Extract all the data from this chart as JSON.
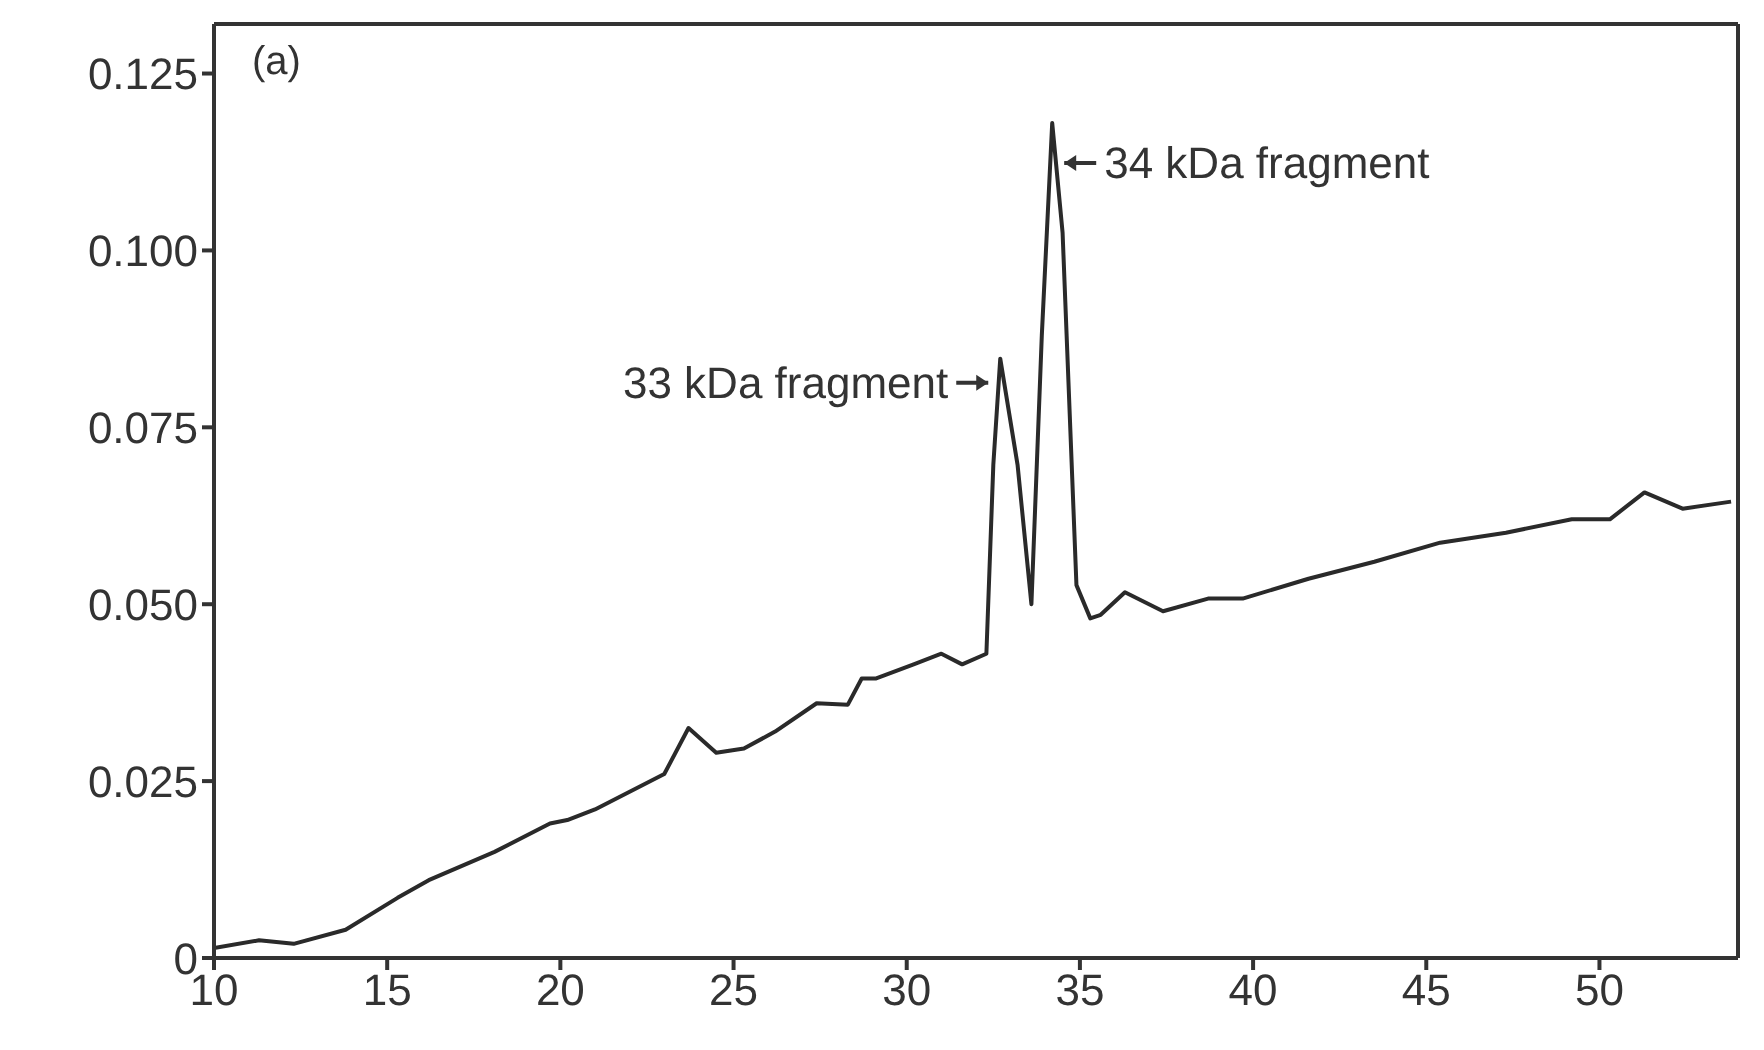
{
  "chart_data": {
    "type": "line",
    "color": "#2a2a2a",
    "x": [
      10,
      11.3,
      12.3,
      13.8,
      15.3,
      16.2,
      18.1,
      19.7,
      20.2,
      21,
      23,
      23.7,
      24.5,
      25.3,
      26.2,
      27.4,
      28.3,
      28.7,
      29.1,
      30.2,
      31,
      31.6,
      32.3,
      32.5,
      32.7,
      33.2,
      33.6,
      33.9,
      34.2,
      34.5,
      34.9,
      35.3,
      35.6,
      36.3,
      37.4,
      38.7,
      39.7,
      41.6,
      43.5,
      45.4,
      47.3,
      49.2,
      50.3,
      51.3,
      52.4,
      53.8
    ],
    "values": [
      0.0014,
      0.0025,
      0.002,
      0.004,
      0.0085,
      0.011,
      0.015,
      0.019,
      0.0195,
      0.021,
      0.026,
      0.0325,
      0.029,
      0.0296,
      0.032,
      0.036,
      0.0358,
      0.0395,
      0.0395,
      0.0415,
      0.043,
      0.0415,
      0.043,
      0.0697,
      0.0847,
      0.0697,
      0.05,
      0.088,
      0.118,
      0.1025,
      0.0527,
      0.048,
      0.0485,
      0.0517,
      0.049,
      0.0508,
      0.0508,
      0.0536,
      0.056,
      0.0587,
      0.0601,
      0.062,
      0.062,
      0.0658,
      0.0635,
      0.0645
    ],
    "xlim": [
      10,
      54
    ],
    "xticks": [
      10,
      15,
      20,
      25,
      30,
      35,
      40,
      45,
      50
    ],
    "ylim": [
      0,
      0.132
    ],
    "yticks": [
      {
        "value": 0,
        "label": "0"
      },
      {
        "value": 0.025,
        "label": "0.025"
      },
      {
        "value": 0.05,
        "label": "0.050"
      },
      {
        "value": 0.075,
        "label": "0.075"
      },
      {
        "value": 0.1,
        "label": "0.100"
      },
      {
        "value": 0.125,
        "label": "0.125"
      }
    ],
    "grid": false,
    "legend": false,
    "marker": "none",
    "line_style": "solid",
    "annotations": [
      "(a)",
      {
        "text": "33 kDa fragment",
        "x": 32.7,
        "y": 0.0847
      },
      {
        "text": "34 kDa fragment",
        "x": 34.2,
        "y": 0.118
      }
    ]
  }
}
